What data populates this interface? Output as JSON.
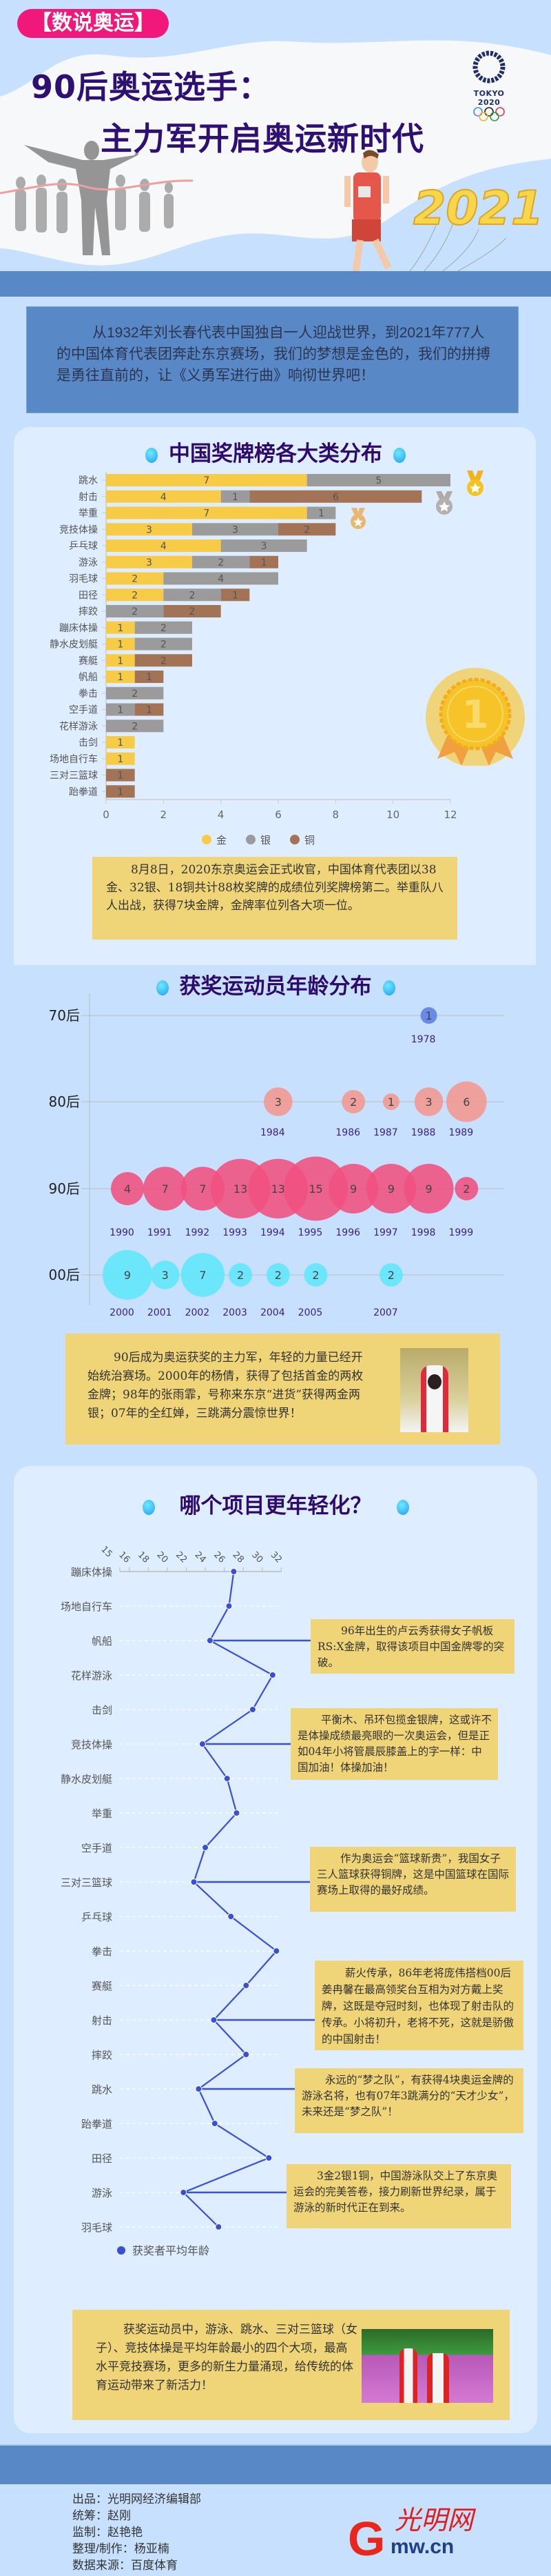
{
  "header": {
    "tag": "【数说奥运】",
    "title_line1": "90后奥运选手：",
    "title_line2": "主力军开启奥运新时代",
    "tokyo_logo_text": "TOKYO 2020",
    "balloon_text": "2021"
  },
  "intro": "从1932年刘长春代表中国独自一人迎战世界，到2021年777人的中国体育代表团奔赴东京赛场，我们的梦想是金色的，我们的拼搏是勇往直前的，让《义勇军进行曲》响彻世界吧！",
  "medal_section": {
    "title": "中国奖牌榜各大类分布",
    "big_medal_text": "1",
    "note": "8月8日，2020东京奥运会正式收官，中国体育代表团以38金、32银、18铜共计88枚奖牌的成绩位列奖牌榜第二。举重队八人出战，获得7块金牌，金牌率位列各大项一位。"
  },
  "age_section": {
    "title": "获奖运动员年龄分布",
    "note": "90后成为奥运获奖的主力军，年轻的力量已经开始统治赛场。2000年的杨倩，获得了包括首金的两枚金牌；98年的张雨霏，号称来东京“进货”获得两金两银；07年的全红婵，三跳满分震惊世界！"
  },
  "line_section": {
    "title": "哪个项目更年轻化？",
    "callouts": [
      {
        "category": "帆船",
        "text": "96年出生的卢云秀获得女子帆板RS:X金牌，取得该项目中国金牌零的突破。"
      },
      {
        "category": "竞技体操",
        "text": "平衡木、吊环包揽金银牌，这或许不是体操成绩最亮眼的一次奥运会，但是正如04年小将管晨辰膝盖上的字一样：中国加油！体操加油！"
      },
      {
        "category": "三对三篮球",
        "text": "作为奥运会“篮球新贵”，我国女子三人篮球获得铜牌，这是中国篮球在国际赛场上取得的最好成绩。"
      },
      {
        "category": "射击",
        "text": "薪火传承，86年老将庞伟搭档00后姜冉馨在最高领奖台互相为对方戴上奖牌，这既是夺冠时刻，也体现了射击队的传承。小将初升，老将不死，这就是骄傲的中国射击！"
      },
      {
        "category": "跳水",
        "text": "永远的“梦之队”，有获得4块奥运金牌的游泳名将，也有07年3跳满分的“天才少女”，未来还是“梦之队”！"
      },
      {
        "category": "游泳",
        "text": "3金2银1铜，中国游泳队交上了东京奥运会的完美答卷，接力刷新世界纪录，属于游泳的新时代正在到来。"
      }
    ],
    "final_note": "获奖运动员中，游泳、跳水、三对三篮球（女子）、竞技体操是平均年龄最小的四个大项，最高水平竞技赛场，更多的新生力量涌现，给传统的体育运动带来了新活力！"
  },
  "footer": {
    "lines": [
      "出品：光明网经济编辑部",
      "统筹：赵刚",
      "监制：赵艳艳",
      "整理/制作：杨亚楠",
      "数据来源：百度体育"
    ],
    "logo_text": "光明网",
    "logo_domain": "mw.cn",
    "logo_letter": "G"
  },
  "colors": {
    "gold": "#f7cb45",
    "silver": "#9b9b9b",
    "bronze": "#a27455",
    "title": "#2e0f73",
    "line": "#3a4fd8",
    "note_bg": "#efd577"
  },
  "chart_data": [
    {
      "type": "bar",
      "stacked": true,
      "orientation": "horizontal",
      "categories": [
        "跳水",
        "射击",
        "举重",
        "竞技体操",
        "乒乓球",
        "游泳",
        "羽毛球",
        "田径",
        "摔跤",
        "蹦床体操",
        "静水皮划艇",
        "赛艇",
        "帆船",
        "拳击",
        "空手道",
        "花样游泳",
        "击剑",
        "场地自行车",
        "三对三篮球",
        "跆拳道"
      ],
      "series": [
        {
          "name": "金",
          "color": "#f7cb45",
          "values": [
            7,
            4,
            7,
            3,
            4,
            3,
            2,
            2,
            0,
            1,
            1,
            1,
            1,
            0,
            0,
            0,
            1,
            1,
            0,
            0
          ]
        },
        {
          "name": "银",
          "color": "#9b9b9b",
          "values": [
            5,
            1,
            1,
            3,
            3,
            2,
            4,
            2,
            2,
            2,
            2,
            0,
            0,
            2,
            1,
            2,
            0,
            0,
            0,
            0
          ]
        },
        {
          "name": "铜",
          "color": "#a27455",
          "values": [
            0,
            6,
            0,
            2,
            0,
            1,
            0,
            1,
            2,
            0,
            0,
            2,
            1,
            0,
            1,
            0,
            0,
            0,
            1,
            1
          ]
        }
      ],
      "xticks": [
        "0",
        "2",
        "4",
        "6",
        "8",
        "10",
        "12"
      ],
      "xlim": [
        0,
        12
      ],
      "legend_position": "bottom"
    },
    {
      "type": "scatter",
      "subtype": "bubble",
      "rows": [
        {
          "label": "70后",
          "color": "#5b7de6",
          "points": [
            {
              "year": "1978",
              "count": 1
            }
          ]
        },
        {
          "label": "80后",
          "color": "#f4978e",
          "points": [
            {
              "year": "1984",
              "count": 3
            },
            {
              "year": "1986",
              "count": 2
            },
            {
              "year": "1987",
              "count": 1
            },
            {
              "year": "1988",
              "count": 3
            },
            {
              "year": "1989",
              "count": 6
            }
          ]
        },
        {
          "label": "90后",
          "color": "#f0507f",
          "points": [
            {
              "year": "1990",
              "count": 4
            },
            {
              "year": "1991",
              "count": 7
            },
            {
              "year": "1992",
              "count": 7
            },
            {
              "year": "1993",
              "count": 13
            },
            {
              "year": "1994",
              "count": 13
            },
            {
              "year": "1995",
              "count": 15
            },
            {
              "year": "1996",
              "count": 9
            },
            {
              "year": "1997",
              "count": 9
            },
            {
              "year": "1998",
              "count": 9
            },
            {
              "year": "1999",
              "count": 2
            }
          ]
        },
        {
          "label": "00后",
          "color": "#5ee6fb",
          "points": [
            {
              "year": "2000",
              "count": 9
            },
            {
              "year": "2001",
              "count": 3
            },
            {
              "year": "2002",
              "count": 7
            },
            {
              "year": "2003",
              "count": 2
            },
            {
              "year": "2004",
              "count": 2
            },
            {
              "year": "2005",
              "count": 2
            },
            {
              "year": "2007",
              "count": 2
            }
          ]
        }
      ],
      "grid": true
    },
    {
      "type": "line",
      "orientation": "vertical-categories",
      "categories": [
        "蹦床体操",
        "场地自行车",
        "帆船",
        "花样游泳",
        "击剑",
        "竞技体操",
        "静水皮划艇",
        "举重",
        "空手道",
        "三对三篮球",
        "乒乓球",
        "拳击",
        "赛艇",
        "射击",
        "摔跤",
        "跳水",
        "跆拳道",
        "田径",
        "游泳",
        "羽毛球"
      ],
      "series": [
        {
          "name": "获奖者平均年龄",
          "color": "#3a4fd8",
          "values": [
            27.0,
            26.5,
            24.5,
            31.1,
            29.0,
            23.7,
            26.3,
            27.3,
            24.0,
            22.8,
            26.7,
            31.5,
            28.3,
            24.9,
            28.3,
            23.3,
            25.0,
            30.7,
            21.7,
            25.4
          ]
        }
      ],
      "xticks": [
        "15",
        "16",
        "18",
        "20",
        "22",
        "24",
        "26",
        "28",
        "30",
        "32"
      ],
      "xlim": [
        15,
        32
      ],
      "legend_position": "bottom-left"
    }
  ]
}
